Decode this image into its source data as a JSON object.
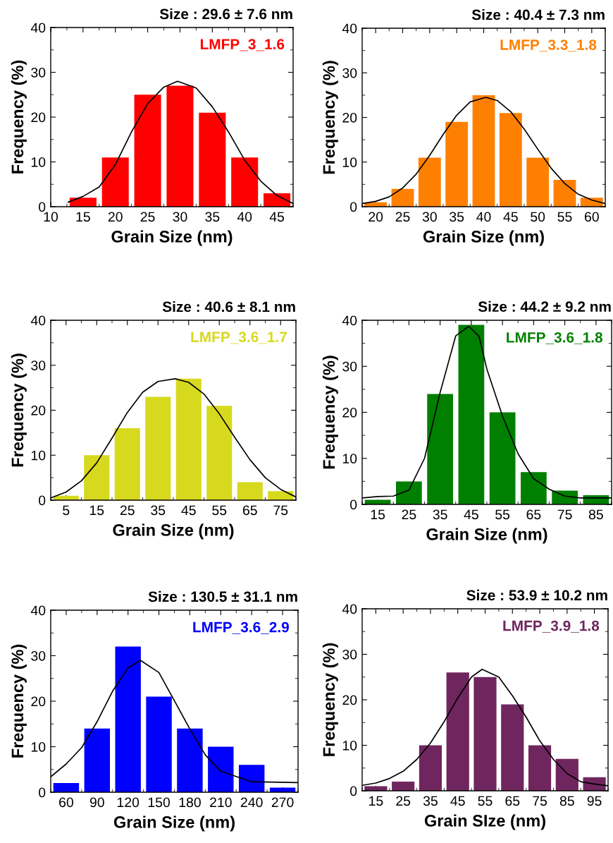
{
  "chart_data": [
    {
      "type": "histogram",
      "title": "Size : 29.6 ± 7.6 nm",
      "xlabel": "Grain Size (nm)",
      "ylabel": "Frequency (%)",
      "annotations": [
        "LMFP_3_1.6"
      ],
      "xlim": [
        10,
        47.5
      ],
      "ylim": [
        0,
        40
      ],
      "xticks": [
        10,
        15,
        20,
        25,
        30,
        35,
        40,
        45
      ],
      "yticks": [
        0,
        10,
        20,
        30,
        40
      ],
      "series": [
        {
          "type": "histogram",
          "color": "#ff0000",
          "bins": [
            12.5,
            17.5,
            22.5,
            27.5,
            32.5,
            37.5,
            42.5,
            47.5
          ],
          "values": [
            2,
            11,
            25,
            27,
            21,
            11,
            3
          ]
        },
        {
          "type": "line",
          "color": "#000000",
          "x": [
            12.7,
            15,
            17.5,
            20,
            22.5,
            25,
            27.5,
            29.6,
            32.5,
            35,
            37.5,
            40,
            42.5,
            45,
            47.5
          ],
          "values": [
            1.0,
            2.3,
            4.4,
            9.4,
            16.7,
            23,
            26.7,
            28,
            26.5,
            22.3,
            16.7,
            10.4,
            5.7,
            2.5,
            0.7
          ]
        }
      ]
    },
    {
      "type": "histogram",
      "title": "Size : 40.4 ± 7.3 nm",
      "xlabel": "Grain Size (nm)",
      "ylabel": "Frequency (%)",
      "annotations": [
        "LMFP_3.3_1.8"
      ],
      "xlim": [
        17.5,
        62.5
      ],
      "ylim": [
        0,
        40
      ],
      "xticks": [
        20,
        25,
        30,
        35,
        40,
        45,
        50,
        55,
        60
      ],
      "yticks": [
        0,
        10,
        20,
        30,
        40
      ],
      "series": [
        {
          "type": "histogram",
          "color": "#ff8000",
          "bins": [
            17.5,
            22.5,
            27.5,
            32.5,
            37.5,
            42.5,
            47.5,
            52.5,
            57.5,
            62.5
          ],
          "values": [
            1,
            4,
            11,
            19,
            25,
            21,
            11,
            6,
            2
          ]
        },
        {
          "type": "line",
          "color": "#000000",
          "x": [
            17.5,
            20,
            22.5,
            25,
            27.5,
            30,
            32.5,
            35,
            37.5,
            40.4,
            42.5,
            45,
            47.5,
            50,
            52.5,
            55,
            57.5,
            60,
            62.5
          ],
          "values": [
            0.7,
            1.2,
            2.2,
            4.2,
            7.3,
            11.5,
            16.2,
            20.5,
            23.5,
            24.5,
            23.8,
            21.3,
            17.4,
            12.9,
            8.6,
            5.2,
            2.8,
            1.5,
            0.7
          ]
        }
      ]
    },
    {
      "type": "histogram",
      "title": "Size : 40.6 ± 8.1 nm",
      "xlabel": "Grain Size (nm)",
      "ylabel": "Frequency (%)",
      "annotations": [
        "LMFP_3.6_1.7"
      ],
      "xlim": [
        0,
        80
      ],
      "ylim": [
        0,
        40
      ],
      "xticks": [
        5,
        15,
        25,
        35,
        45,
        55,
        65,
        75
      ],
      "yticks": [
        0,
        10,
        20,
        30,
        40
      ],
      "series": [
        {
          "type": "histogram",
          "color": "#d7d91e",
          "bins": [
            0,
            10,
            20,
            30,
            40,
            50,
            60,
            70,
            80
          ],
          "values": [
            1,
            10,
            16,
            23,
            27,
            21,
            4,
            2
          ]
        },
        {
          "type": "line",
          "color": "#000000",
          "x": [
            0,
            5,
            10,
            15,
            20,
            25,
            30,
            35,
            40.6,
            45,
            50,
            55,
            60,
            65,
            70,
            75,
            80
          ],
          "values": [
            0.5,
            1.8,
            4.3,
            8.3,
            13.8,
            19.5,
            24.0,
            26.4,
            27,
            26.2,
            23.6,
            19.2,
            14.0,
            9.0,
            5.0,
            2.4,
            0.7
          ]
        }
      ]
    },
    {
      "type": "histogram",
      "title": "Size : 44.2 ± 9.2 nm",
      "xlabel": "Grain Size (nm)",
      "ylabel": "Frequency (%)",
      "annotations": [
        "LMFP_3.6_1.8"
      ],
      "xlim": [
        10,
        90
      ],
      "ylim": [
        0,
        40
      ],
      "xticks": [
        15,
        25,
        35,
        45,
        55,
        65,
        75,
        85
      ],
      "yticks": [
        0,
        10,
        20,
        30,
        40
      ],
      "series": [
        {
          "type": "histogram",
          "color": "#007f00",
          "bins": [
            10,
            20,
            30,
            40,
            50,
            60,
            70,
            80,
            90
          ],
          "values": [
            1,
            5,
            24,
            39,
            20,
            7,
            3,
            2
          ]
        },
        {
          "type": "line",
          "color": "#000000",
          "x": [
            10,
            15,
            20,
            25,
            30,
            35,
            40,
            44.2,
            47.5,
            50,
            55,
            60,
            65,
            70,
            75,
            80,
            90
          ],
          "values": [
            1.4,
            1.7,
            1.8,
            3.1,
            10,
            24.3,
            36.6,
            38.7,
            36.5,
            29.4,
            19.2,
            11,
            5.6,
            3.3,
            1.8,
            1.4,
            1.4
          ]
        }
      ]
    },
    {
      "type": "histogram",
      "title": "Size : 130.5 ± 31.1 nm",
      "xlabel": "Grain Size (nm)",
      "ylabel": "Frequency (%)",
      "annotations": [
        "LMFP_3.6_2.9"
      ],
      "xlim": [
        45,
        285
      ],
      "ylim": [
        0,
        40
      ],
      "xticks": [
        60,
        90,
        120,
        150,
        180,
        210,
        240,
        270
      ],
      "yticks": [
        0,
        10,
        20,
        30,
        40
      ],
      "series": [
        {
          "type": "histogram",
          "color": "#0000ff",
          "bins": [
            45,
            75,
            105,
            135,
            165,
            195,
            225,
            255,
            285
          ],
          "values": [
            2,
            14,
            32,
            21,
            14,
            10,
            6,
            1
          ]
        },
        {
          "type": "line",
          "color": "#000000",
          "x": [
            45,
            60,
            75,
            90,
            105,
            120,
            132,
            150,
            165,
            180,
            195,
            210,
            240,
            285
          ],
          "values": [
            3.4,
            6.2,
            9.8,
            15.5,
            22.2,
            27.3,
            29,
            26.3,
            20.1,
            13.9,
            8.2,
            4.6,
            2.3,
            2.1
          ]
        }
      ]
    },
    {
      "type": "histogram",
      "title": "Size : 53.9 ± 10.2 nm",
      "xlabel": "Grain SIze (nm)",
      "ylabel": "Frequency (%)",
      "annotations": [
        "LMFP_3.9_1.8"
      ],
      "xlim": [
        10,
        100
      ],
      "ylim": [
        0,
        40
      ],
      "xticks": [
        15,
        25,
        35,
        45,
        55,
        65,
        75,
        85,
        95
      ],
      "yticks": [
        0,
        10,
        20,
        30,
        40
      ],
      "series": [
        {
          "type": "histogram",
          "color": "#6f265f",
          "bins": [
            10,
            20,
            30,
            40,
            50,
            60,
            70,
            80,
            90,
            100
          ],
          "values": [
            1,
            2,
            10,
            26,
            25,
            19,
            10,
            7,
            3
          ]
        },
        {
          "type": "line",
          "color": "#000000",
          "x": [
            10,
            15,
            20,
            25,
            30,
            35,
            40,
            45,
            50,
            53.9,
            60,
            65,
            70,
            75,
            80,
            85,
            90,
            95,
            100
          ],
          "values": [
            1.2,
            1.7,
            2.7,
            4.3,
            6.9,
            10.5,
            15.2,
            20.4,
            25,
            26.7,
            25,
            20.9,
            16.2,
            11,
            6.9,
            3.8,
            2,
            1.5,
            1.1
          ]
        }
      ]
    }
  ]
}
